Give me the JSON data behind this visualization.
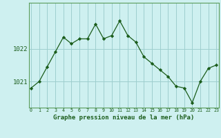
{
  "x": [
    0,
    1,
    2,
    3,
    4,
    5,
    6,
    7,
    8,
    9,
    10,
    11,
    12,
    13,
    14,
    15,
    16,
    17,
    18,
    19,
    20,
    21,
    22,
    23
  ],
  "y": [
    1020.8,
    1021.0,
    1021.45,
    1021.9,
    1022.35,
    1022.15,
    1022.3,
    1022.3,
    1022.75,
    1022.3,
    1022.4,
    1022.85,
    1022.4,
    1022.2,
    1021.75,
    1021.55,
    1021.35,
    1021.15,
    1020.85,
    1020.8,
    1020.35,
    1021.0,
    1021.4,
    1021.5
  ],
  "line_color": "#1a5c1a",
  "marker_color": "#1a5c1a",
  "bg_color": "#cef0f0",
  "grid_color": "#9ecece",
  "xlabel": "Graphe pression niveau de la mer (hPa)",
  "xlabel_color": "#1a5c1a",
  "ytick_labels": [
    "1021",
    "1022"
  ],
  "ytick_values": [
    1021,
    1022
  ],
  "ylim": [
    1020.2,
    1023.4
  ],
  "xlim": [
    -0.3,
    23.3
  ],
  "xtick_labels": [
    "0",
    "1",
    "2",
    "3",
    "4",
    "5",
    "6",
    "7",
    "8",
    "9",
    "10",
    "11",
    "12",
    "13",
    "14",
    "15",
    "16",
    "17",
    "18",
    "19",
    "20",
    "21",
    "22",
    "23"
  ],
  "axes_color": "#5a9c5a"
}
